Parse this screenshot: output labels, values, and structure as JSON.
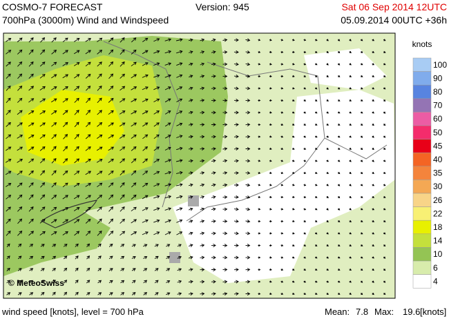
{
  "header": {
    "title": "COSMO-7 FORECAST",
    "subtitle": "700hPa (3000m) Wind and Windspeed",
    "version": "Version: 945",
    "valid_time": "Sat 06 Sep 2014 12UTC",
    "run_time": "05.09.2014 00UTC +36h"
  },
  "map": {
    "credit": "© MeteoSwiss"
  },
  "legend": {
    "title": "knots",
    "items": [
      {
        "label": "100",
        "color": "#a8ccf4"
      },
      {
        "label": "90",
        "color": "#80acec"
      },
      {
        "label": "80",
        "color": "#5884e0"
      },
      {
        "label": "70",
        "color": "#9474b4"
      },
      {
        "label": "60",
        "color": "#ec5ca4"
      },
      {
        "label": "50",
        "color": "#f42c6c"
      },
      {
        "label": "45",
        "color": "#e80018"
      },
      {
        "label": "40",
        "color": "#f46424"
      },
      {
        "label": "35",
        "color": "#f4843c"
      },
      {
        "label": "30",
        "color": "#f4a854"
      },
      {
        "label": "26",
        "color": "#f8d488"
      },
      {
        "label": "22",
        "color": "#f8f074"
      },
      {
        "label": "18",
        "color": "#e8f000"
      },
      {
        "label": "14",
        "color": "#c4e03c"
      },
      {
        "label": "10",
        "color": "#94c454"
      },
      {
        "label": "6",
        "color": "#d8ecac"
      },
      {
        "label": "4",
        "color": "#ffffff"
      }
    ]
  },
  "footer": {
    "description": "wind speed [knots], level = 700 hPa",
    "mean_label": "Mean:",
    "mean": "7.8",
    "max_label": "Max:",
    "max": "19.6",
    "unit": "[knots]"
  }
}
